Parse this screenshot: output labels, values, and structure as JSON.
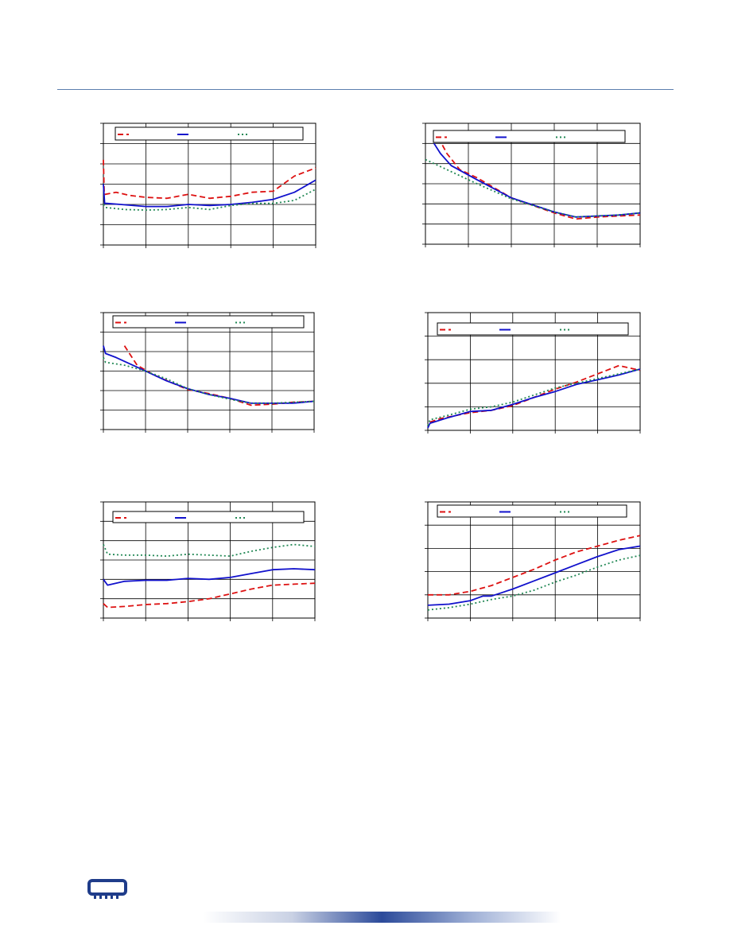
{
  "colors": {
    "series1": "#dd1111",
    "series2": "#1111cc",
    "series3": "#228855",
    "grid": "#000000",
    "header_rule": "#5b7fae",
    "footer_gradient": "#2b4a9a"
  },
  "legend_styles": [
    "dashed",
    "solid",
    "dotted"
  ],
  "logo_icon": "memory-chip-icon",
  "chart_data": [
    {
      "type": "line",
      "title": "",
      "xlabel": "",
      "ylabel": "",
      "xlim": [
        0,
        5
      ],
      "ylim": [
        0,
        6
      ],
      "grid": true,
      "legend": "top",
      "series": [
        {
          "x": [
            0,
            0.02,
            0.05,
            0.3,
            0.6,
            1,
            1.5,
            2,
            2.5,
            3,
            3.5,
            4,
            4.5,
            5
          ],
          "values": [
            4.2,
            2.5,
            2.5,
            2.6,
            2.45,
            2.35,
            2.3,
            2.5,
            2.3,
            2.4,
            2.6,
            2.65,
            3.4,
            3.8
          ]
        },
        {
          "x": [
            0,
            0.03,
            0.08,
            0.4,
            1,
            1.5,
            2,
            2.5,
            3,
            3.5,
            4,
            4.5,
            5
          ],
          "values": [
            3.0,
            2.05,
            2.05,
            2.0,
            1.9,
            1.9,
            2.0,
            1.95,
            2.0,
            2.1,
            2.25,
            2.6,
            3.2
          ]
        },
        {
          "x": [
            0,
            0.05,
            0.5,
            1,
            1.5,
            2,
            2.5,
            3,
            3.5,
            4,
            4.5,
            5
          ],
          "values": [
            2.0,
            1.85,
            1.75,
            1.72,
            1.75,
            1.85,
            1.75,
            1.95,
            2.05,
            2.05,
            2.2,
            2.75
          ]
        }
      ]
    },
    {
      "type": "line",
      "title": "",
      "xlabel": "",
      "ylabel": "",
      "xlim": [
        0,
        5
      ],
      "ylim": [
        0,
        6
      ],
      "grid": true,
      "legend": "top",
      "series": [
        {
          "x": [
            0.3,
            0.5,
            0.8,
            1.2,
            2,
            3,
            3.5,
            4,
            4.5,
            5
          ],
          "values": [
            5.3,
            4.5,
            3.7,
            3.3,
            2.3,
            1.55,
            1.25,
            1.35,
            1.4,
            1.45
          ]
        },
        {
          "x": [
            0.2,
            0.35,
            0.6,
            1.2,
            2,
            3,
            3.5,
            4,
            4.5,
            5
          ],
          "values": [
            5.0,
            4.5,
            3.9,
            3.2,
            2.3,
            1.6,
            1.35,
            1.4,
            1.45,
            1.55
          ]
        },
        {
          "x": [
            0,
            0.1,
            0.3,
            0.6,
            1.2,
            2,
            3,
            3.5,
            4,
            4.5,
            5
          ],
          "values": [
            4.2,
            4.1,
            3.9,
            3.6,
            3.0,
            2.25,
            1.6,
            1.35,
            1.4,
            1.45,
            1.55
          ]
        }
      ]
    },
    {
      "type": "line",
      "title": "",
      "xlabel": "",
      "ylabel": "",
      "xlim": [
        0,
        5
      ],
      "ylim": [
        0,
        6
      ],
      "grid": true,
      "legend": "top",
      "series": [
        {
          "x": [
            0.5,
            0.8,
            1.2,
            2,
            2.5,
            3,
            3.5,
            4,
            4.5,
            5
          ],
          "values": [
            4.3,
            3.3,
            2.8,
            2.05,
            1.85,
            1.6,
            1.25,
            1.3,
            1.4,
            1.45
          ]
        },
        {
          "x": [
            0,
            0.05,
            0.3,
            0.8,
            1.5,
            2,
            2.5,
            3,
            3.5,
            4,
            4.5,
            5
          ],
          "values": [
            4.3,
            3.9,
            3.7,
            3.2,
            2.5,
            2.1,
            1.8,
            1.6,
            1.35,
            1.35,
            1.35,
            1.45
          ]
        },
        {
          "x": [
            0,
            0.05,
            0.5,
            1,
            1.5,
            2,
            2.5,
            3,
            3.5,
            4,
            4.5,
            5
          ],
          "values": [
            3.7,
            3.45,
            3.3,
            3.0,
            2.6,
            2.1,
            1.8,
            1.55,
            1.35,
            1.35,
            1.4,
            1.45
          ]
        }
      ]
    },
    {
      "type": "line",
      "title": "",
      "xlabel": "",
      "ylabel": "",
      "xlim": [
        0,
        5
      ],
      "ylim": [
        0,
        5
      ],
      "grid": true,
      "legend": "top",
      "series": [
        {
          "x": [
            0.05,
            0.3,
            1,
            1.5,
            2,
            2.5,
            3,
            3.5,
            4,
            4.5,
            5
          ],
          "values": [
            0.35,
            0.5,
            0.75,
            0.85,
            1.05,
            1.4,
            1.75,
            2.05,
            2.4,
            2.75,
            2.55
          ]
        },
        {
          "x": [
            0,
            0.05,
            0.5,
            1,
            1.5,
            2,
            2.5,
            3,
            3.5,
            4,
            4.5,
            5
          ],
          "values": [
            0.1,
            0.3,
            0.55,
            0.8,
            0.85,
            1.1,
            1.4,
            1.65,
            1.95,
            2.15,
            2.35,
            2.6
          ]
        },
        {
          "x": [
            0,
            0.05,
            0.5,
            1,
            1.5,
            2,
            2.5,
            3,
            3.5,
            4,
            4.5,
            5
          ],
          "values": [
            0.2,
            0.45,
            0.65,
            0.9,
            1.0,
            1.2,
            1.5,
            1.8,
            2.0,
            2.2,
            2.4,
            2.6
          ]
        }
      ]
    },
    {
      "type": "line",
      "title": "",
      "xlabel": "",
      "ylabel": "",
      "xlim": [
        0,
        5
      ],
      "ylim": [
        0,
        6
      ],
      "grid": true,
      "legend": "top",
      "series": [
        {
          "x": [
            0,
            0.1,
            0.5,
            1,
            1.5,
            2,
            2.5,
            3,
            3.5,
            4,
            4.5,
            5
          ],
          "values": [
            0.75,
            0.55,
            0.6,
            0.7,
            0.75,
            0.85,
            1.0,
            1.25,
            1.5,
            1.7,
            1.75,
            1.8
          ]
        },
        {
          "x": [
            0,
            0.1,
            0.5,
            1,
            1.5,
            2,
            2.5,
            3,
            3.5,
            4,
            4.5,
            5
          ],
          "values": [
            2.0,
            1.7,
            1.9,
            1.95,
            1.95,
            2.05,
            2.0,
            2.1,
            2.3,
            2.5,
            2.55,
            2.5
          ]
        },
        {
          "x": [
            0,
            0.1,
            0.5,
            1,
            1.5,
            2,
            2.5,
            3,
            3.5,
            4,
            4.5,
            5
          ],
          "values": [
            3.8,
            3.3,
            3.25,
            3.25,
            3.2,
            3.3,
            3.25,
            3.2,
            3.45,
            3.65,
            3.8,
            3.7
          ]
        }
      ]
    },
    {
      "type": "line",
      "title": "",
      "xlabel": "",
      "ylabel": "",
      "xlim": [
        0,
        5
      ],
      "ylim": [
        0,
        5
      ],
      "grid": true,
      "legend": "top",
      "series": [
        {
          "x": [
            0,
            0.5,
            1,
            1.5,
            2,
            2.5,
            3,
            3.5,
            4,
            4.5,
            5
          ],
          "values": [
            1.0,
            1.0,
            1.15,
            1.4,
            1.75,
            2.1,
            2.5,
            2.85,
            3.1,
            3.35,
            3.55
          ]
        },
        {
          "x": [
            0,
            0.5,
            1,
            1.3,
            1.5,
            2,
            2.5,
            3,
            3.5,
            4,
            4.5,
            5
          ],
          "values": [
            0.55,
            0.6,
            0.75,
            0.95,
            0.95,
            1.25,
            1.6,
            1.95,
            2.3,
            2.65,
            2.95,
            3.1
          ]
        },
        {
          "x": [
            0,
            0.5,
            1,
            1.5,
            2,
            2.5,
            3,
            3.5,
            4,
            4.5,
            5
          ],
          "values": [
            0.35,
            0.45,
            0.6,
            0.8,
            0.95,
            1.2,
            1.55,
            1.85,
            2.2,
            2.5,
            2.7
          ]
        }
      ]
    }
  ]
}
